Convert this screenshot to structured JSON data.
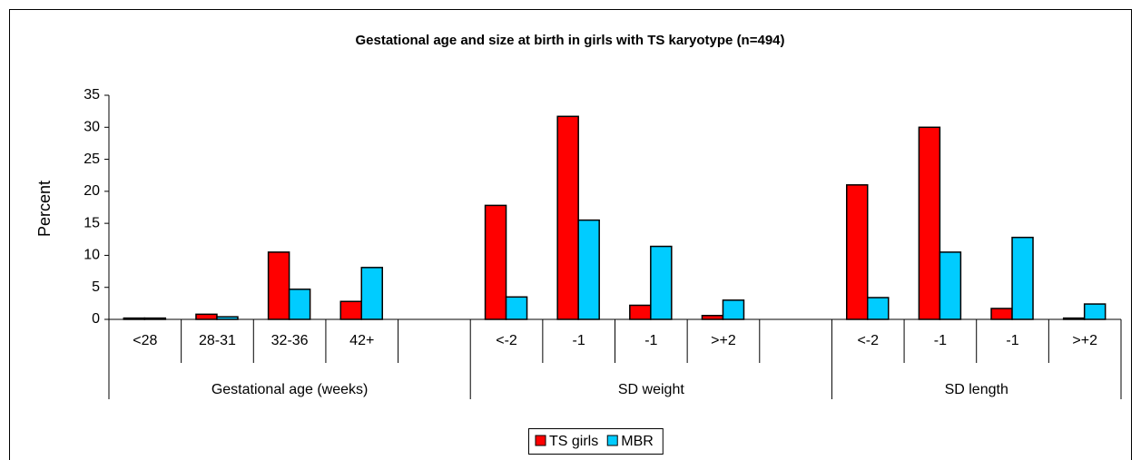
{
  "chart_data": {
    "type": "bar",
    "title": "Gestational age and size at birth in girls with TS karyotype (n=494)",
    "y_label": "Percent",
    "ylim": [
      0,
      35
    ],
    "yticks": [
      0,
      5,
      10,
      15,
      20,
      25,
      30,
      35
    ],
    "grid": false,
    "groups": [
      {
        "label": "Gestational age (weeks)",
        "categories": [
          "<28",
          "28-31",
          "32-36",
          "42+",
          null
        ]
      },
      {
        "label": "SD weight",
        "categories": [
          "<-2",
          "-1",
          "-1",
          ">+2",
          null
        ]
      },
      {
        "label": "SD length",
        "categories": [
          "<-2",
          "-1",
          "-1",
          ">+2"
        ]
      }
    ],
    "series": [
      {
        "name": "TS girls",
        "color": "#ff0000",
        "values": [
          0.2,
          0.8,
          10.5,
          2.8,
          null,
          17.8,
          31.7,
          2.2,
          0.6,
          null,
          21.0,
          30.0,
          1.7,
          0.2
        ]
      },
      {
        "name": "MBR",
        "color": "#00ccff",
        "values": [
          0.2,
          0.4,
          4.7,
          8.1,
          null,
          3.5,
          15.5,
          11.4,
          3.0,
          null,
          3.4,
          10.5,
          12.8,
          2.4
        ]
      }
    ],
    "legend": "bottom"
  }
}
